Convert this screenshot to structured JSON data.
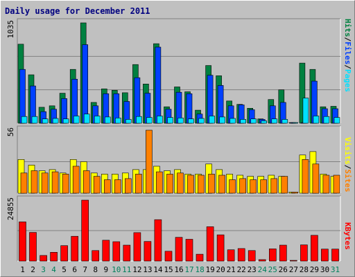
{
  "chart_data": {
    "type": "bar",
    "title": "Daily usage for December 2011",
    "categories": [
      "1",
      "2",
      "3",
      "4",
      "5",
      "6",
      "7",
      "8",
      "9",
      "10",
      "11",
      "12",
      "13",
      "14",
      "15",
      "16",
      "17",
      "18",
      "19",
      "20",
      "21",
      "22",
      "23",
      "24",
      "25",
      "26",
      "27",
      "28",
      "29",
      "30",
      "31"
    ],
    "weekend_days": [
      "3",
      "4",
      "10",
      "11",
      "17",
      "18",
      "24",
      "25",
      "31"
    ],
    "grid": true,
    "colors": {
      "hits": "#008040",
      "files": "#0040ff",
      "pages": "#00e0ff",
      "visits": "#ffff00",
      "sites": "#ff8000",
      "kbytes": "#ff0000",
      "weekday_label": "#000000",
      "weekend_label": "#00805c",
      "title": "#000080"
    },
    "legend": {
      "top": [
        {
          "text": "Hits",
          "color": "#008040"
        },
        {
          "text": "/",
          "color": "#000000"
        },
        {
          "text": "Files",
          "color": "#0040ff"
        },
        {
          "text": "/",
          "color": "#000000"
        },
        {
          "text": "Pages",
          "color": "#00e0ff"
        }
      ],
      "middle": [
        {
          "text": "Visits",
          "color": "#ffff00"
        },
        {
          "text": "/",
          "color": "#000000"
        },
        {
          "text": "Sites",
          "color": "#ff8000"
        }
      ],
      "bottom": [
        {
          "text": "KBytes",
          "color": "#ff0000"
        }
      ]
    },
    "panels": [
      {
        "id": "hits_files_pages",
        "ymax": 1035,
        "ymax_label": "1035",
        "series": [
          {
            "name": "Hits",
            "color": "#008040",
            "values": [
              815,
              500,
              165,
              180,
              310,
              555,
              1035,
              215,
              355,
              340,
              315,
              605,
              405,
              820,
              170,
              375,
              325,
              135,
              595,
              490,
              230,
              195,
              155,
              45,
              245,
              345,
              0,
              620,
              555,
              170,
              175
            ]
          },
          {
            "name": "Files",
            "color": "#0040ff",
            "values": [
              555,
              385,
              120,
              145,
              255,
              455,
              810,
              180,
              305,
              305,
              225,
              470,
              310,
              785,
              145,
              320,
              305,
              95,
              495,
              390,
              180,
              190,
              140,
              40,
              180,
              215,
              0,
              0,
              435,
              150,
              150
            ]
          },
          {
            "name": "Pages",
            "color": "#00e0ff",
            "values": [
              70,
              70,
              45,
              50,
              45,
              75,
              95,
              75,
              65,
              55,
              40,
              70,
              60,
              75,
              60,
              55,
              45,
              50,
              75,
              65,
              50,
              40,
              45,
              25,
              45,
              40,
              0,
              260,
              75,
              70,
              60
            ]
          }
        ]
      },
      {
        "id": "visits_sites",
        "ymax": 56,
        "ymax_label": "56",
        "series": [
          {
            "name": "Visits",
            "color": "#ffff00",
            "values": [
              30,
              25,
              20,
              21,
              18,
              30,
              28,
              18,
              17,
              17,
              18,
              21,
              21,
              24,
              20,
              21,
              17,
              17,
              26,
              21,
              17,
              16,
              15,
              15,
              16,
              15,
              1,
              34,
              37,
              17,
              15
            ]
          },
          {
            "name": "Sites",
            "color": "#ff8000",
            "values": [
              18,
              20,
              18,
              19,
              17,
              24,
              20,
              15,
              12,
              12,
              13,
              17,
              56,
              19,
              17,
              18,
              16,
              16,
              17,
              16,
              12,
              13,
              12,
              12,
              13,
              15,
              1,
              30,
              26,
              16,
              16
            ]
          }
        ]
      },
      {
        "id": "kbytes",
        "ymax": 24855,
        "ymax_label": "24855",
        "series": [
          {
            "name": "KBytes",
            "color": "#ff0000",
            "values": [
              16000,
              11700,
              2300,
              3600,
              6300,
              10100,
              24855,
              4300,
              8500,
              7900,
              6500,
              11600,
              8000,
              16900,
              4000,
              9700,
              8900,
              2800,
              14000,
              10700,
              4600,
              5100,
              4300,
              600,
              5000,
              6500,
              0,
              6600,
              10500,
              4900,
              4900
            ]
          }
        ]
      }
    ]
  }
}
